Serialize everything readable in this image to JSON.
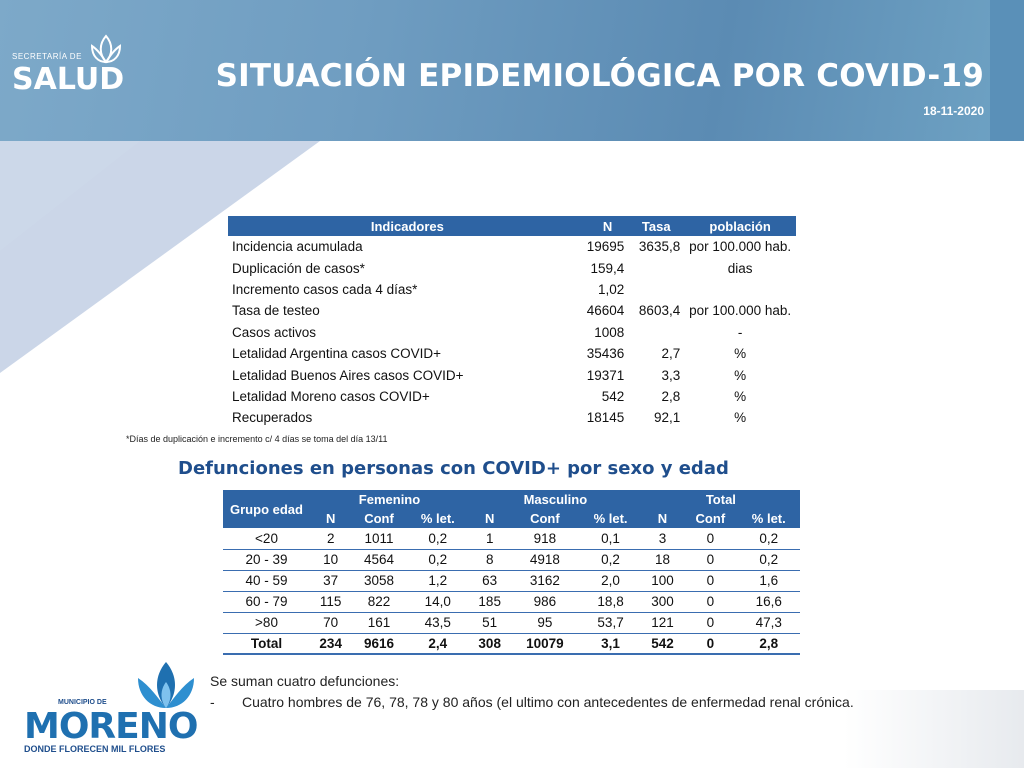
{
  "header": {
    "title": "SITUACIÓN EPIDEMIOLÓGICA POR COVID-19",
    "date": "18-11-2020",
    "logo_salud": {
      "line1": "SECRETARÍA DE",
      "line2": "SALUD"
    }
  },
  "indicators": {
    "headers": [
      "Indicadores",
      "N",
      "Tasa",
      "población"
    ],
    "rows": [
      {
        "label": "Incidencia acumulada",
        "n": "19695",
        "tasa": "3635,8",
        "pob": "por 100.000 hab."
      },
      {
        "label": "Duplicación de casos*",
        "n": "159,4",
        "tasa": "",
        "pob": "dias"
      },
      {
        "label": "Incremento casos cada 4 días*",
        "n": "1,02",
        "tasa": "",
        "pob": ""
      },
      {
        "label": "Tasa de testeo",
        "n": "46604",
        "tasa": "8603,4",
        "pob": "por 100.000 hab."
      },
      {
        "label": "Casos activos",
        "n": "1008",
        "tasa": "",
        "pob": "-"
      },
      {
        "label": "Letalidad Argentina casos COVID+",
        "n": "35436",
        "tasa": "2,7",
        "pob": "%"
      },
      {
        "label": "Letalidad Buenos Aires casos COVID+",
        "n": "19371",
        "tasa": "3,3",
        "pob": "%"
      },
      {
        "label": "Letalidad Moreno casos COVID+",
        "n": "542",
        "tasa": "2,8",
        "pob": "%"
      },
      {
        "label": "Recuperados",
        "n": "18145",
        "tasa": "92,1",
        "pob": "%"
      }
    ],
    "footnote": "*Días de duplicación e incremento c/ 4 días se toma del día 13/11"
  },
  "deaths": {
    "subtitle": "Defunciones en personas con COVID+ por sexo y edad",
    "group_header": "Grupo edad",
    "groups": [
      "Femenino",
      "Masculino",
      "Total"
    ],
    "subheaders": [
      "N",
      "Conf",
      "% let.",
      "N",
      "Conf",
      "% let.",
      "N",
      "Conf",
      "% let."
    ],
    "rows": [
      {
        "age": "<20",
        "vals": [
          "2",
          "1011",
          "0,2",
          "1",
          "918",
          "0,1",
          "3",
          "0",
          "0,2"
        ]
      },
      {
        "age": "20 - 39",
        "vals": [
          "10",
          "4564",
          "0,2",
          "8",
          "4918",
          "0,2",
          "18",
          "0",
          "0,2"
        ]
      },
      {
        "age": "40 - 59",
        "vals": [
          "37",
          "3058",
          "1,2",
          "63",
          "3162",
          "2,0",
          "100",
          "0",
          "1,6"
        ]
      },
      {
        "age": "60 - 79",
        "vals": [
          "115",
          "822",
          "14,0",
          "185",
          "986",
          "18,8",
          "300",
          "0",
          "16,6"
        ]
      },
      {
        "age": ">80",
        "vals": [
          "70",
          "161",
          "43,5",
          "51",
          "95",
          "53,7",
          "121",
          "0",
          "47,3"
        ]
      }
    ],
    "total": {
      "age": "Total",
      "vals": [
        "234",
        "9616",
        "2,4",
        "308",
        "10079",
        "3,1",
        "542",
        "0",
        "2,8"
      ]
    }
  },
  "notes": {
    "line1": "Se suman cuatro defunciones:",
    "bullet": "-",
    "line2": "Cuatro hombres de 76, 78, 78 y 80 años (el ultimo con antecedentes de enfermedad renal crónica."
  },
  "logo_moreno": {
    "muni": "MUNICIPIO DE",
    "name": "MORENO",
    "tagline": "DONDE FLORECEN MIL FLORES"
  },
  "colors": {
    "header": "#6b9bc0",
    "table_header": "#2e64a4",
    "subtitle": "#1f4e8c"
  }
}
